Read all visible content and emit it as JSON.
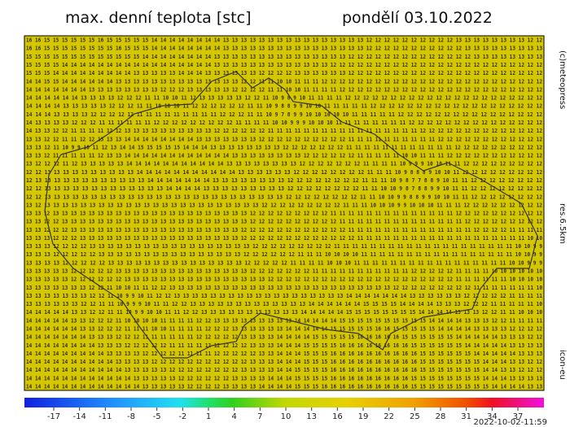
{
  "header": {
    "title": "max. denní teplota [stc]",
    "date": "pondělí 03.10.2022"
  },
  "side_labels": {
    "copyright": "(c)meteopress",
    "resolution": "res.6.5km",
    "model": "icon-eu"
  },
  "map": {
    "background": "#d4c700",
    "rows": [
      "16 16 15 15 15 15 15 15 16 15 15 15 15 15 14 14 14 14 14 14 14 14 13 13 13 13 13 13 13 13 13 13 13 13 13 13 13 13 12 12 12 12 12 12 12 12 12 12 13 13 13 13 13 13 13 13 12 12",
      "16 16 15 15 15 15 15 15 15 15 16 15 15 15 14 14 14 14 14 14 14 14 13 13 13 13 13 13 13 13 13 13 13 13 13 13 13 13 12 12 12 12 12 12 12 12 12 12 12 13 13 13 13 13 13 13 13 13",
      "15 15 15 15 15 15 15 15 15 15 15 15 15 14 14 14 14 14 14 14 14 13 13 13 13 13 13 13 13 13 13 13 13 13 13 13 12 12 12 12 12 12 12 12 12 12 12 12 12 12 13 13 13 13 13 13 13 13",
      "15 15 15 15 14 14 14 14 14 14 14 14 14 14 14 14 14 14 14 14 14 13 13 13 13 13 13 13 13 13 13 13 13 13 12 12 12 12 12 12 12 12 12 12 12 12 12 12 12 12 12 12 12 12 12 12 12 12",
      "15 15 15 14 14 14 14 14 14 14 14 14 13 13 13 13 13 14 14 14 13 13 13 13 13 13 12 12 12 12 13 13 13 13 13 13 12 12 12 12 12 12 12 12 12 12 12 12 12 12 12 12 12 12 12 12 12 12",
      "14 14 15 15 14 14 14 14 14 14 13 13 13 13 13 13 13 13 13 13 13 13 13 13 12 12 11 11 10 10 11 11 11 12 12 12 12 12 12 12 12 12 12 12 12 12 12 12 12 12 12 12 12 12 12 12 12 12",
      "14 14 14 14 14 14 14 13 13 13 13 13 13 13 13 12 12 12 13 13 13 13 13 12 12 12 12 11 11 10 10 11 11 11 11 12 12 12 12 12 12 12 12 12 12 12 12 12 12 12 12 12 12 12 12 12 12 12",
      "14 14 14 14 14 14 13 13 13 13 12 12 12 11 11 10 10 11 12 13 13 13 13 13 12 12 11 10 9 8 9 10 11 11 11 11 12 12 12 12 12 12 12 12 12 12 12 12 12 12 12 12 12 12 12 12 12 12",
      "14 14 14 14 13 13 13 13 13 12 12 12 11 11 10 10 10 11 12 12 12 12 12 12 11 11 10 9 8 8 9 9 10 10 11 11 11 11 11 12 12 12 12 12 12 12 12 12 12 12 12 12 12 12 12 12 12 12",
      "14 14 14 13 13 13 13 12 12 12 12 12 11 11 11 11 11 11 11 11 11 12 12 12 11 11 10 9 7 8 9 9 10 10 10 10 10 11 11 11 11 11 12 12 12 12 12 12 12 12 12 12 12 12 12 12 12 12",
      "14 13 13 13 13 12 12 12 11 11 11 11 11 11 12 12 12 12 12 12 12 12 12 11 11 11 11 10 10 9 9 9 10 10 10 11 11 11 11 11 11 11 11 12 12 12 12 12 12 12 12 12 12 12 12 12 12 12",
      "14 13 13 12 12 11 11 11 11 12 12 13 13 13 13 13 13 13 13 13 13 12 12 12 12 12 12 11 11 11 11 11 11 11 11 11 11 11 11 11 11 11 11 11 12 12 12 12 12 12 12 12 12 12 12 12 12 12",
      "13 13 12 12 11 11 12 12 13 13 13 14 14 14 14 14 14 14 14 13 13 13 13 13 13 13 12 12 12 12 12 12 12 12 12 12 11 11 11 11 11 11 11 11 11 11 12 12 12 12 12 12 12 12 12 12 12 12",
      "13 13 12 11 10 9 9 10 11 12 13 14 14 15 15 15 15 15 14 14 14 13 13 13 13 13 13 13 13 12 12 12 12 12 12 12 11 11 11 11 11 11 11 11 11 11 11 11 12 12 12 12 12 12 12 12 12 12",
      "13 13 12 11 11 11 11 11 12 13 13 14 14 14 14 14 14 14 14 14 14 14 14 13 13 13 13 13 13 13 13 12 12 12 12 12 12 11 11 11 11 11 10 10 11 11 11 12 12 12 12 12 12 12 12 12 12 12",
      "13 12 12 12 11 12 13 13 13 13 13 14 14 14 14 14 14 14 14 14 14 14 13 13 13 13 13 13 13 13 12 12 12 12 12 12 12 11 11 11 11 10 9 9 9 10 10 11 11 12 12 12 12 12 12 12 12 12",
      "12 12 13 13 13 13 13 13 13 13 13 13 14 14 14 14 14 14 14 14 14 14 14 13 13 13 13 13 13 12 12 12 12 12 12 12 12 11 11 11 10 9 8 8 8 9 10 10 11 12 12 12 12 12 12 12 12 12",
      "12 13 13 13 13 13 13 13 13 13 13 13 13 14 14 14 14 14 14 14 13 13 13 13 13 13 13 13 12 12 12 12 12 12 12 12 11 11 11 10 9 8 7 7 8 8 9 10 11 11 12 12 12 12 12 12 12 12",
      "12 12 13 13 13 13 13 13 13 13 13 13 13 13 13 14 14 14 14 13 13 13 13 13 13 13 13 13 12 12 12 12 12 12 12 12 11 11 10 10 9 8 7 8 8 9 9 10 11 11 12 12 12 12 12 12 12 12",
      "12 12 13 13 13 13 13 13 13 13 13 13 13 13 13 13 13 13 13 13 13 13 13 13 13 13 13 13 12 12 12 12 12 12 12 12 11 11 10 10 9 9 8 8 9 9 10 10 11 11 12 12 12 12 12 12 12 12",
      "13 12 13 13 13 13 13 13 13 13 13 13 13 13 13 13 13 13 13 13 13 13 13 13 13 13 12 12 12 12 12 12 12 12 12 11 11 11 10 10 10 9 9 10 10 10 11 11 11 12 12 12 12 12 12 12 12 12",
      "13 13 12 13 13 13 13 13 13 13 13 13 13 13 13 13 13 13 13 13 13 13 13 13 13 12 12 12 12 12 12 12 12 12 11 11 11 11 11 11 11 11 11 11 11 11 11 11 12 12 12 12 12 12 12 12 12 12",
      "13 13 12 12 13 13 13 13 13 13 13 13 13 13 13 13 13 13 13 13 13 13 13 13 13 12 12 12 12 12 12 12 12 12 12 11 11 11 11 11 11 11 11 11 11 11 11 11 11 12 12 12 12 12 12 12 12 12",
      "13 13 12 12 12 13 13 13 13 13 13 13 13 13 13 13 13 13 13 13 13 13 13 13 12 12 12 12 12 12 12 12 12 12 12 12 11 11 11 11 11 11 11 11 11 11 11 11 11 11 12 12 12 12 11 11 11 11",
      "13 13 13 12 12 12 13 13 13 13 13 13 13 13 13 13 13 13 13 13 13 13 13 13 12 12 12 12 12 12 12 12 12 12 12 12 12 11 11 11 11 11 11 11 11 11 11 11 11 11 11 11 11 11 11 11 10 10",
      "13 13 13 12 12 12 12 13 13 13 13 13 13 13 13 13 13 13 13 13 13 13 13 13 13 12 12 12 12 12 12 12 12 12 11 11 11 11 11 11 11 11 11 11 11 11 11 11 11 11 11 11 11 11 10 10 9 9",
      "13 13 13 12 12 12 12 12 13 13 13 13 13 13 13 13 13 13 13 13 13 13 13 13 12 12 12 12 12 12 11 11 11 10 10 10 10 11 11 11 11 11 11 11 11 11 11 11 11 11 11 11 11 11 10 10 9 9",
      "13 13 13 13 12 12 12 12 12 13 13 13 13 13 13 13 13 13 13 13 13 13 13 13 12 12 12 12 12 11 11 11 11 10 10 10 11 11 11 11 11 11 11 11 11 11 11 11 11 11 11 11 11 10 10 9 9 9",
      "13 13 13 13 13 12 12 12 12 12 13 13 13 13 13 13 13 13 13 13 13 13 13 13 13 12 12 12 12 12 12 12 11 11 11 11 11 11 11 11 11 11 11 12 12 12 12 12 11 11 11 11 10 10 10 10 10 10",
      "13 13 13 13 13 12 12 12 12 12 12 13 13 13 13 13 13 13 13 13 13 13 13 13 13 13 13 12 12 12 12 12 12 12 12 12 12 12 12 12 12 12 12 12 12 12 12 12 11 11 11 11 11 11 10 10 10 10",
      "13 13 13 13 13 13 13 12 12 11 10 10 11 11 12 12 13 13 13 13 13 13 13 13 13 13 13 13 13 13 13 13 13 13 13 13 13 13 13 13 13 12 12 12 12 12 12 12 12 12 11 11 11 11 11 11 11 10",
      "13 13 13 13 13 13 13 12 12 11 10 9 9 10 11 12 12 13 13 13 13 13 13 13 13 13 13 13 13 13 13 13 13 13 13 13 14 14 14 14 14 14 14 13 13 13 13 13 13 12 12 12 12 12 11 11 11 11",
      "13 13 13 13 13 13 12 12 11 11 10 9 9 9 10 11 11 12 12 13 13 13 13 13 13 13 13 13 13 13 13 13 14 14 14 14 14 14 15 15 15 15 14 14 14 14 13 13 13 12 12 12 11 11 11 11 11 10",
      "14 14 14 14 14 13 13 12 12 11 11 10 9 9 10 10 11 11 12 12 13 13 13 13 13 13 13 13 13 13 13 14 14 14 14 14 15 15 15 15 15 15 15 15 14 14 14 14 13 13 13 12 12 11 11 10 10 10",
      "14 14 14 14 14 13 13 12 12 12 11 10 10 10 10 11 11 11 11 12 12 13 13 13 13 13 13 13 13 13 14 14 14 14 14 15 15 15 15 15 15 15 15 15 15 14 14 14 14 13 13 13 12 12 11 11 11 11",
      "14 14 14 14 14 14 13 13 12 12 12 11 11 11 10 10 11 11 11 11 12 12 12 13 13 13 13 13 13 14 14 14 14 14 15 15 15 15 15 16 16 15 15 15 15 15 14 14 14 14 13 13 13 13 12 12 12 12",
      "14 14 14 14 14 14 14 13 13 13 12 12 12 11 11 11 11 11 11 12 12 12 12 12 13 13 13 13 14 14 14 14 15 15 15 15 15 16 16 16 16 16 15 15 15 15 15 15 14 14 14 14 14 13 13 13 12 12",
      "14 14 14 14 14 14 14 14 13 13 13 12 12 12 12 12 11 11 11 11 12 12 12 12 12 13 13 13 14 14 14 15 15 15 15 16 16 16 16 16 16 16 16 15 15 15 15 15 15 14 14 14 14 14 13 13 13 13",
      "14 14 14 14 14 14 14 14 14 13 13 13 13 12 12 12 12 11 11 11 11 12 12 12 12 12 13 13 14 14 14 15 15 15 16 16 16 16 16 16 16 16 16 16 15 15 15 15 15 15 14 14 14 14 14 13 13 13",
      "14 14 14 14 14 14 14 14 14 14 13 13 13 13 12 12 12 12 12 12 12 12 12 12 12 13 13 13 14 14 14 15 15 15 16 16 16 16 16 16 16 16 16 16 15 15 15 15 15 15 15 14 14 14 13 13 12 12",
      "14 14 14 14 14 14 14 14 14 14 14 13 13 13 13 13 12 12 12 12 12 12 12 12 13 13 13 13 14 14 15 15 15 15 16 16 16 16 16 16 16 16 16 16 15 15 15 15 15 15 15 14 14 13 13 12 12 12",
      "14 14 14 14 14 14 14 14 14 14 14 14 13 13 13 13 13 12 12 12 12 12 12 13 13 13 13 14 14 14 15 15 15 15 16 16 16 16 16 16 16 16 16 15 15 15 15 15 15 15 15 14 14 14 13 13 13 13",
      "14 14 14 14 14 14 14 14 14 14 14 14 14 13 13 13 13 13 12 12 12 12 13 13 13 13 14 14 14 14 15 15 15 16 16 16 16 16 16 16 16 16 16 15 15 15 15 15 15 15 15 15 14 14 14 14 13 13"
    ]
  },
  "colorbar": {
    "ticks": [
      -17,
      -14,
      -11,
      -8,
      -5,
      -2,
      1,
      4,
      7,
      10,
      13,
      16,
      19,
      22,
      25,
      28,
      31,
      34,
      37
    ],
    "timestamp": "2022-10-02-11:59"
  }
}
